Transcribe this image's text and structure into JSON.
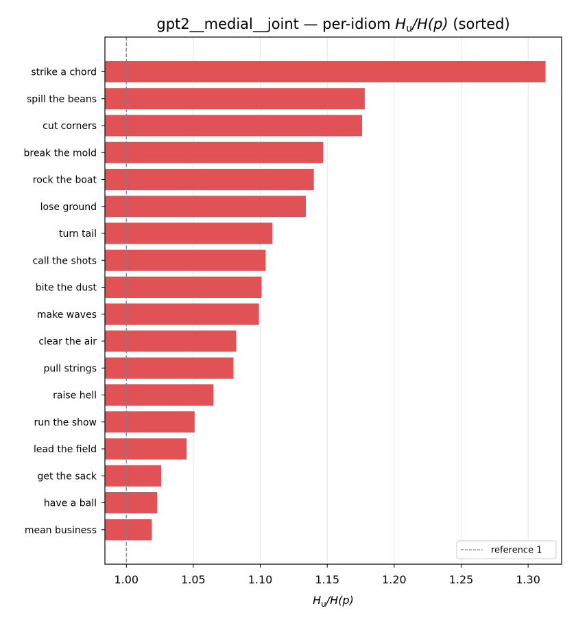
{
  "chart_data": {
    "type": "bar",
    "orientation": "horizontal",
    "title": "gpt2__medial__joint — per-idiom",
    "title_math": "H",
    "title_math_sub": "u",
    "title_math_rest": "/H(p)",
    "title_suffix": "(sorted)",
    "xlabel_main": "H",
    "xlabel_sub": "u",
    "xlabel_rest": "/H(p)",
    "ylabel": "",
    "categories": [
      "strike a chord",
      "spill the beans",
      "cut corners",
      "break the mold",
      "rock the boat",
      "lose ground",
      "turn tail",
      "call the shots",
      "bite the dust",
      "make waves",
      "clear the air",
      "pull strings",
      "raise hell",
      "run the show",
      "lead the field",
      "get the sack",
      "have a ball",
      "mean business"
    ],
    "values": [
      1.313,
      1.178,
      1.176,
      1.147,
      1.14,
      1.134,
      1.109,
      1.104,
      1.101,
      1.099,
      1.082,
      1.08,
      1.065,
      1.051,
      1.045,
      1.026,
      1.023,
      1.019
    ],
    "xlim": [
      0.984,
      1.325
    ],
    "xticks": [
      "1.00",
      "1.05",
      "1.10",
      "1.15",
      "1.20",
      "1.25",
      "1.30"
    ],
    "xtick_values": [
      1.0,
      1.05,
      1.1,
      1.15,
      1.2,
      1.25,
      1.3
    ],
    "reference_line": 1.0,
    "legend": {
      "label": "reference 1",
      "position": "bottom-right"
    },
    "grid": "x",
    "bar_color": "#e05255",
    "reference_color": "#808080",
    "grid_color": "#e6e6e6"
  }
}
